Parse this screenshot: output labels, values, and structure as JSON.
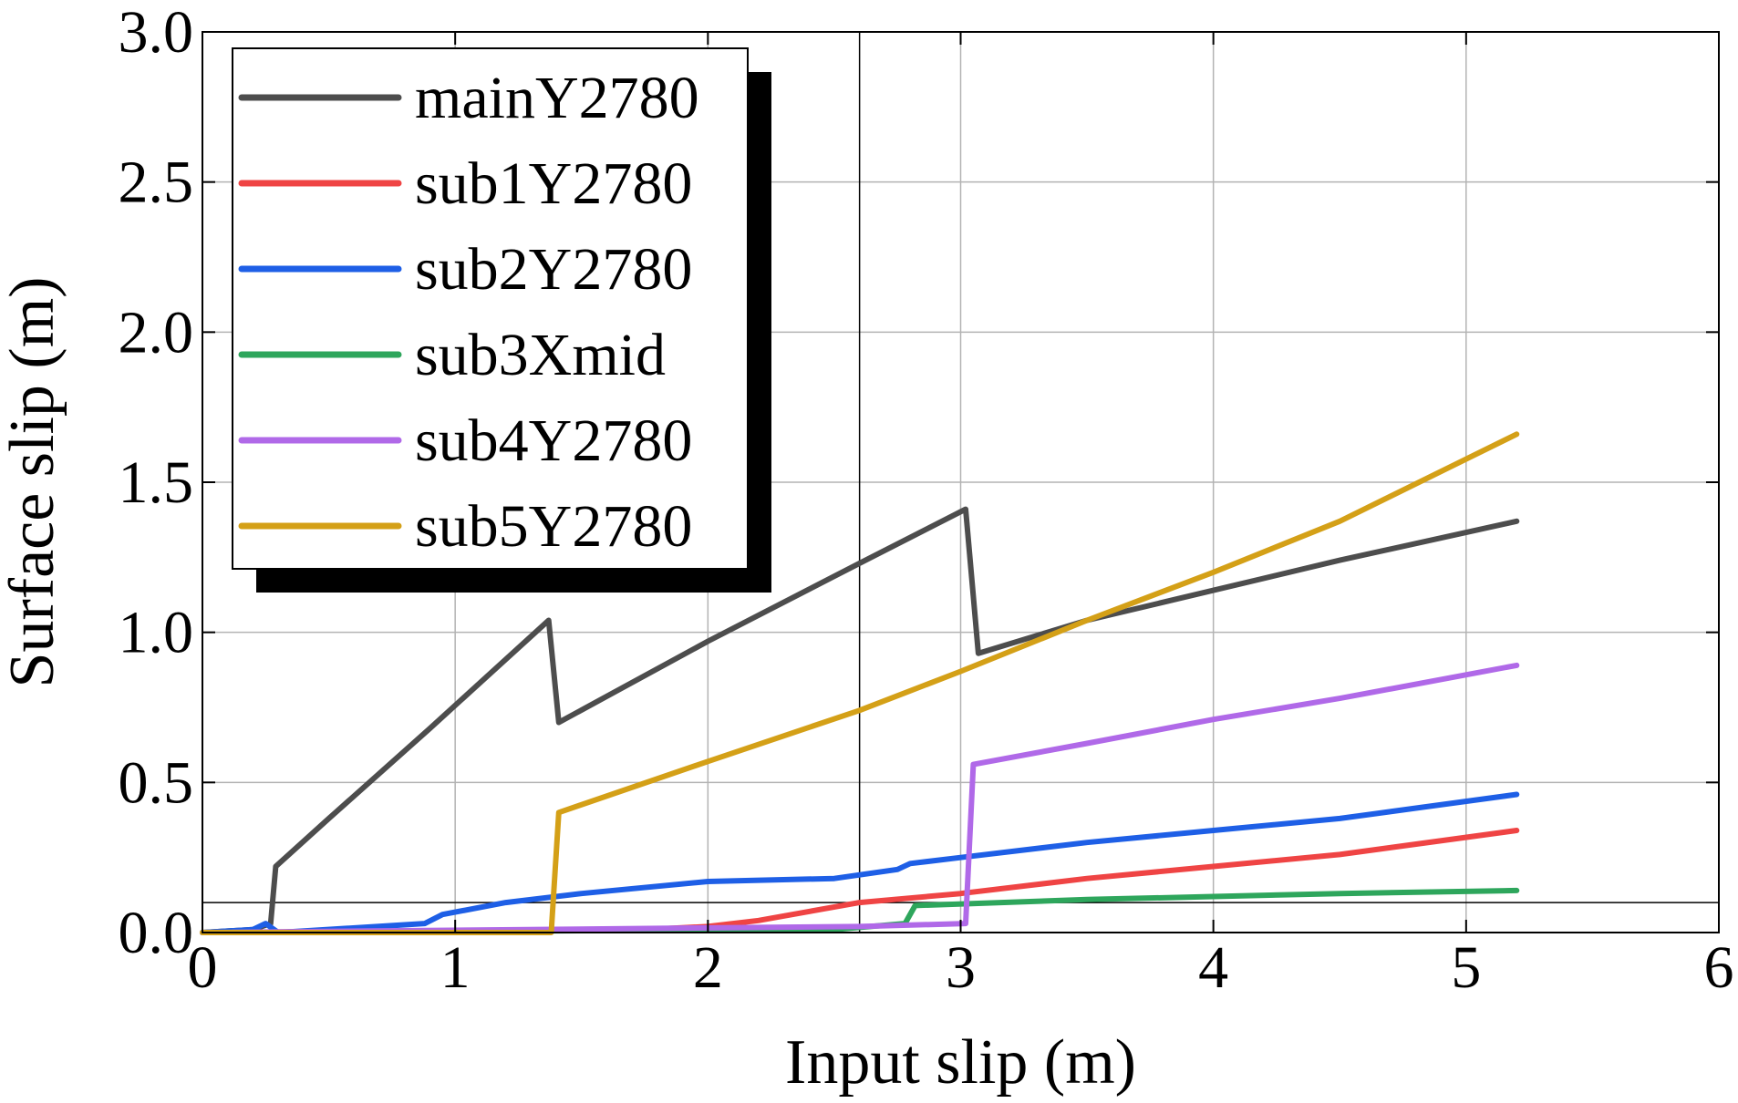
{
  "chart_data": {
    "type": "line",
    "title": "",
    "xlabel": "Input slip (m)",
    "ylabel": "Surface slip (m)",
    "xlim": [
      0,
      6
    ],
    "ylim": [
      0,
      3.0
    ],
    "xticks": [
      0,
      1,
      2,
      3,
      4,
      5,
      6
    ],
    "xtick_labels": [
      "0",
      "1",
      "2",
      "3",
      "4",
      "5",
      "6"
    ],
    "yticks": [
      0.0,
      0.5,
      1.0,
      1.5,
      2.0,
      2.5,
      3.0
    ],
    "ytick_labels": [
      "0.0",
      "0.5",
      "1.0",
      "1.5",
      "2.0",
      "2.5",
      "3.0"
    ],
    "grid": true,
    "legend_position": "top-left",
    "reference_lines": [
      {
        "orientation": "vertical",
        "value": 2.6,
        "color": "#000000"
      },
      {
        "orientation": "horizontal",
        "value": 0.1,
        "color": "#000000"
      }
    ],
    "series": [
      {
        "name": "mainY2780",
        "color": "#4d4d4d",
        "points": [
          [
            0,
            0
          ],
          [
            0.2,
            0.01
          ],
          [
            0.27,
            0.03
          ],
          [
            0.29,
            0.22
          ],
          [
            0.5,
            0.38
          ],
          [
            0.9,
            0.68
          ],
          [
            1.37,
            1.04
          ],
          [
            1.41,
            0.7
          ],
          [
            2.0,
            0.97
          ],
          [
            2.6,
            1.23
          ],
          [
            3.02,
            1.41
          ],
          [
            3.07,
            0.93
          ],
          [
            3.5,
            1.04
          ],
          [
            4.0,
            1.14
          ],
          [
            4.5,
            1.24
          ],
          [
            5.2,
            1.37
          ]
        ]
      },
      {
        "name": "sub1Y2780",
        "color": "#ef4444",
        "points": [
          [
            0,
            0
          ],
          [
            1.75,
            0.01
          ],
          [
            2.0,
            0.02
          ],
          [
            2.2,
            0.04
          ],
          [
            2.4,
            0.07
          ],
          [
            2.6,
            0.1
          ],
          [
            3.0,
            0.13
          ],
          [
            3.5,
            0.18
          ],
          [
            4.0,
            0.22
          ],
          [
            4.5,
            0.26
          ],
          [
            5.2,
            0.34
          ]
        ]
      },
      {
        "name": "sub2Y2780",
        "color": "#1e5fe6",
        "points": [
          [
            0,
            0
          ],
          [
            0.2,
            0.01
          ],
          [
            0.25,
            0.03
          ],
          [
            0.3,
            0.0
          ],
          [
            0.88,
            0.03
          ],
          [
            0.95,
            0.06
          ],
          [
            1.2,
            0.1
          ],
          [
            1.5,
            0.13
          ],
          [
            2.0,
            0.17
          ],
          [
            2.5,
            0.18
          ],
          [
            2.75,
            0.21
          ],
          [
            2.8,
            0.23
          ],
          [
            3.0,
            0.25
          ],
          [
            3.5,
            0.3
          ],
          [
            4.0,
            0.34
          ],
          [
            4.5,
            0.38
          ],
          [
            5.2,
            0.46
          ]
        ]
      },
      {
        "name": "sub3Xmid",
        "color": "#2ea65c",
        "points": [
          [
            0,
            0
          ],
          [
            2.5,
            0.01
          ],
          [
            2.78,
            0.03
          ],
          [
            2.82,
            0.09
          ],
          [
            3.5,
            0.11
          ],
          [
            4.0,
            0.12
          ],
          [
            4.5,
            0.13
          ],
          [
            5.2,
            0.14
          ]
        ]
      },
      {
        "name": "sub4Y2780",
        "color": "#b069e8",
        "points": [
          [
            0,
            0
          ],
          [
            2.6,
            0.02
          ],
          [
            3.02,
            0.03
          ],
          [
            3.05,
            0.56
          ],
          [
            3.5,
            0.63
          ],
          [
            4.0,
            0.71
          ],
          [
            4.5,
            0.78
          ],
          [
            5.2,
            0.89
          ]
        ]
      },
      {
        "name": "sub5Y2780",
        "color": "#d4a017",
        "points": [
          [
            0,
            0
          ],
          [
            1.38,
            0.0
          ],
          [
            1.41,
            0.4
          ],
          [
            2.0,
            0.57
          ],
          [
            2.6,
            0.74
          ],
          [
            3.0,
            0.87
          ],
          [
            3.5,
            1.04
          ],
          [
            4.0,
            1.2
          ],
          [
            4.5,
            1.37
          ],
          [
            5.2,
            1.66
          ]
        ]
      }
    ]
  }
}
